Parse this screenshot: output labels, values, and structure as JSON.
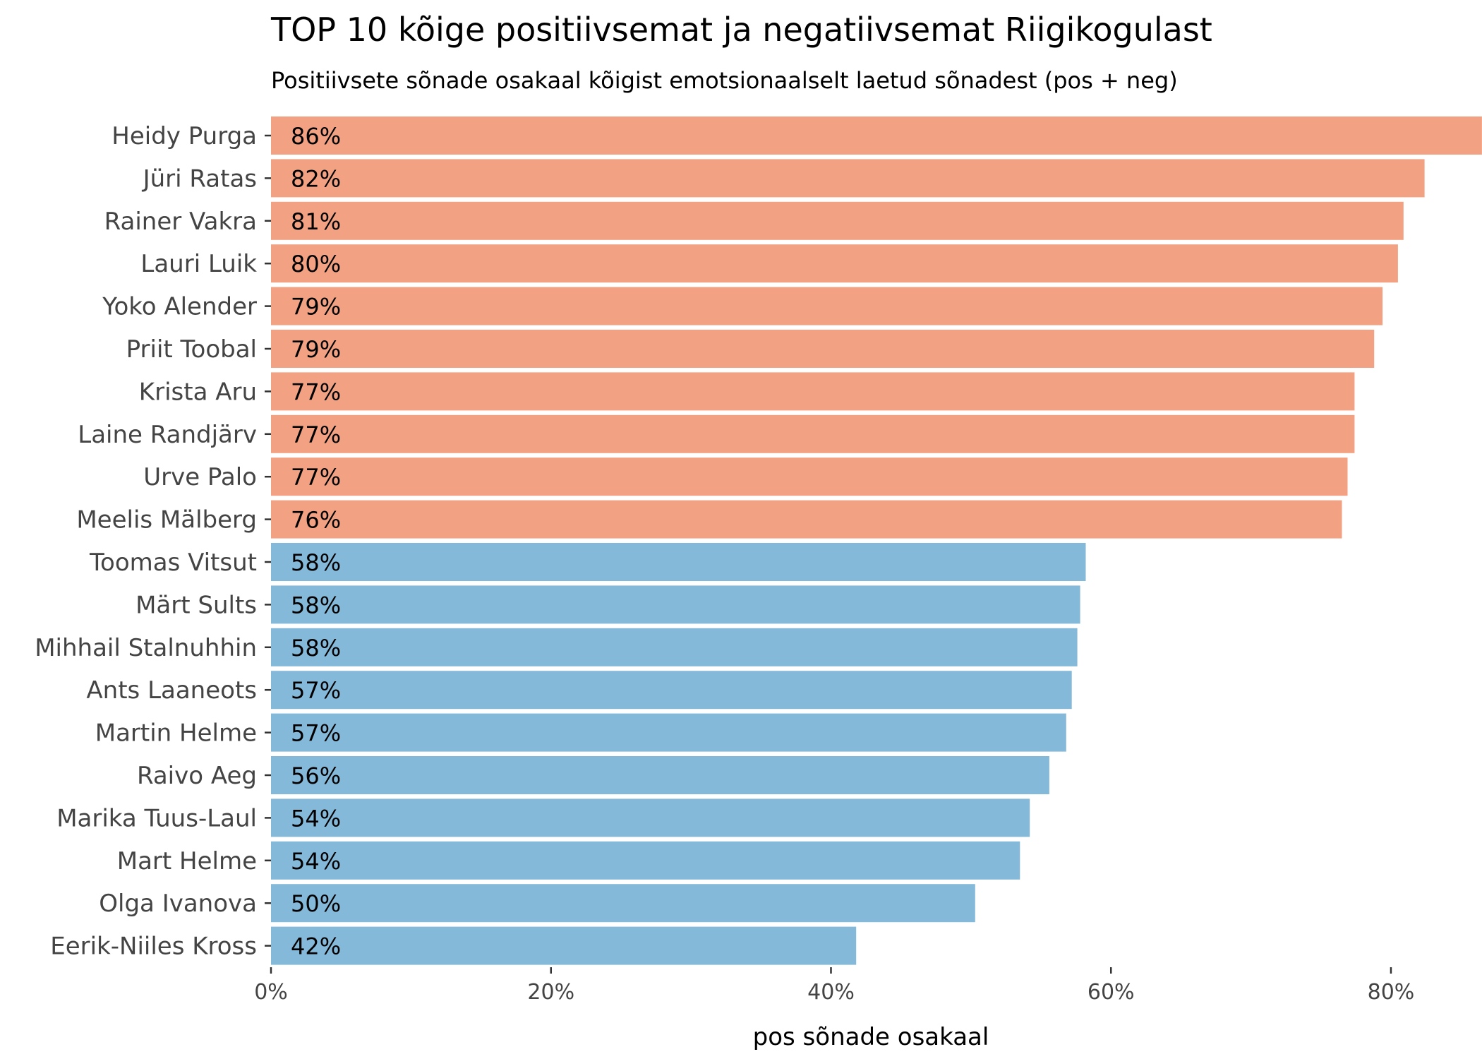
{
  "chart_data": {
    "type": "bar",
    "orientation": "horizontal",
    "title": "TOP 10 kõige positiivsemat ja negatiivsemat Riigikogulast",
    "subtitle": "Positiivsete sõnade osakaal kõigist emotsionaalselt laetud sõnadest (pos + neg)",
    "xlabel": "pos sõnade osakaal",
    "ylabel": "",
    "xlim": [
      0,
      0.86
    ],
    "xticks": [
      0,
      0.2,
      0.4,
      0.6,
      0.8
    ],
    "xtick_labels": [
      "0%",
      "20%",
      "40%",
      "60%",
      "80%"
    ],
    "grid": false,
    "colors": {
      "positive": "#F2A282",
      "negative": "#85B9D9"
    },
    "categories": [
      "Heidy Purga",
      "Jüri Ratas",
      "Rainer Vakra",
      "Lauri Luik",
      "Yoko Alender",
      "Priit Toobal",
      "Krista Aru",
      "Laine Randjärv",
      "Urve Palo",
      "Meelis Mälberg",
      "Toomas Vitsut",
      "Märt Sults",
      "Mihhail Stalnuhhin",
      "Ants Laaneots",
      "Martin Helme",
      "Raivo Aeg",
      "Marika Tuus-Laul",
      "Mart Helme",
      "Olga Ivanova",
      "Eerik-Niiles Kross"
    ],
    "values": [
      0.865,
      0.824,
      0.809,
      0.805,
      0.794,
      0.788,
      0.774,
      0.774,
      0.769,
      0.765,
      0.582,
      0.578,
      0.576,
      0.572,
      0.568,
      0.556,
      0.542,
      0.535,
      0.503,
      0.418
    ],
    "value_labels": [
      "86%",
      "82%",
      "81%",
      "80%",
      "79%",
      "79%",
      "77%",
      "77%",
      "77%",
      "76%",
      "58%",
      "58%",
      "58%",
      "57%",
      "57%",
      "56%",
      "54%",
      "54%",
      "50%",
      "42%"
    ],
    "group": [
      "positive",
      "positive",
      "positive",
      "positive",
      "positive",
      "positive",
      "positive",
      "positive",
      "positive",
      "positive",
      "negative",
      "negative",
      "negative",
      "negative",
      "negative",
      "negative",
      "negative",
      "negative",
      "negative",
      "negative"
    ]
  }
}
